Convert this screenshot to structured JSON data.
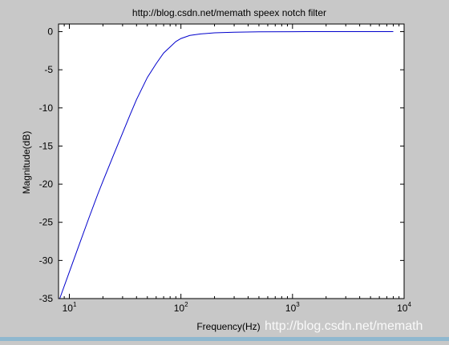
{
  "chart_data": {
    "type": "line",
    "title": "http://blog.csdn.net/memath  speex  notch filter",
    "xlabel": "Frequency(Hz)",
    "ylabel": "Magnitude(dB)",
    "xscale": "log",
    "xlim": [
      8,
      10000
    ],
    "ylim": [
      -35,
      1
    ],
    "grid": false,
    "legend": "none",
    "line_color": "#0000cc",
    "x_ticks": [
      {
        "base": "10",
        "exp": "1",
        "value": 10
      },
      {
        "base": "10",
        "exp": "2",
        "value": 100
      },
      {
        "base": "10",
        "exp": "3",
        "value": 1000
      },
      {
        "base": "10",
        "exp": "4",
        "value": 10000
      }
    ],
    "y_ticks": [
      {
        "label": "0",
        "value": 0
      },
      {
        "label": "-5",
        "value": -5
      },
      {
        "label": "-10",
        "value": -10
      },
      {
        "label": "-15",
        "value": -15
      },
      {
        "label": "-20",
        "value": -20
      },
      {
        "label": "-25",
        "value": -25
      },
      {
        "label": "-30",
        "value": -30
      },
      {
        "label": "-35",
        "value": -35
      }
    ],
    "series": [
      {
        "x": [
          8.2,
          10,
          12,
          15,
          18,
          20,
          25,
          30,
          35,
          40,
          50,
          60,
          70,
          80,
          90,
          100,
          120,
          150,
          200,
          300,
          500,
          1000,
          2000,
          5000,
          8000
        ],
        "values": [
          -35,
          -31.5,
          -28.3,
          -24.4,
          -21.3,
          -19.6,
          -16.1,
          -13.3,
          -10.9,
          -8.9,
          -6.0,
          -4.2,
          -2.8,
          -2.0,
          -1.3,
          -0.9,
          -0.5,
          -0.3,
          -0.15,
          -0.07,
          -0.03,
          -0.01,
          0,
          0,
          0
        ]
      }
    ]
  },
  "watermark": "http://blog.csdn.net/memath"
}
